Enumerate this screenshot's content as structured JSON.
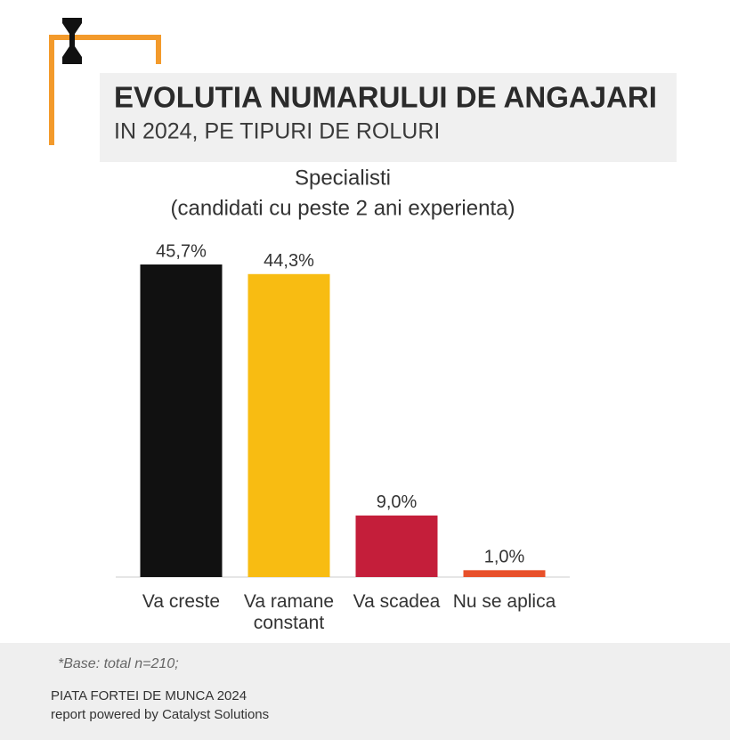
{
  "header": {
    "title": "EVOLUTIA NUMARULUI DE ANGAJARI",
    "subtitle": "IN 2024, PE TIPURI DE ROLURI"
  },
  "chart_data": {
    "type": "bar",
    "title": "Specialisti",
    "subtitle": "(candidati cu peste 2 ani experienta)",
    "categories": [
      "Va creste",
      "Va ramane constant",
      "Va scadea",
      "Nu se aplica"
    ],
    "values": [
      45.7,
      44.3,
      9.0,
      1.0
    ],
    "value_labels": [
      "45,7%",
      "44,3%",
      "9,0%",
      "1,0%"
    ],
    "colors": [
      "#111111",
      "#f8bc12",
      "#c41e3a",
      "#e8502a"
    ]
  },
  "footer": {
    "note": "*Base: total n=210;",
    "line1": "PIATA FORTEI DE MUNCA 2024",
    "line2": "report powered by Catalyst Solutions"
  }
}
